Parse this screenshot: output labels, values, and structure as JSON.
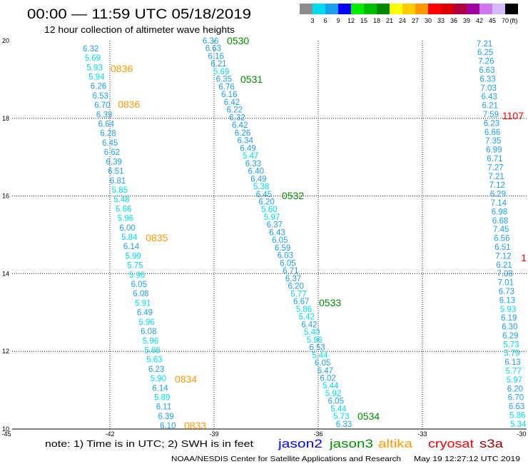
{
  "chart_data": {
    "type": "scatter",
    "title": "00:00 — 11:59 UTC 05/18/2019",
    "subtitle": "12 hour collection of altimeter wave heights",
    "xlim": [
      -45,
      -30
    ],
    "ylim": [
      10,
      20
    ],
    "x_ticks": [
      -45,
      -42,
      -39,
      -36,
      -33,
      -30
    ],
    "y_ticks": [
      20,
      18,
      16,
      14,
      12,
      10
    ],
    "grid": true,
    "colorbar": {
      "position": "top-right",
      "thresholds_ft": [
        3,
        6,
        9,
        12,
        15,
        18,
        21,
        24,
        27,
        30,
        33,
        36,
        39,
        42,
        45,
        70
      ],
      "unit": "(ft)",
      "colors": [
        "#8c8c8c",
        "#00dcee",
        "#1ca0ee",
        "#0000ff",
        "#00ee00",
        "#00bb00",
        "#008800",
        "#ffff00",
        "#ffcc00",
        "#ff9900",
        "#ff0000",
        "#dd0000",
        "#b00040",
        "#a000a0",
        "#cc77ee",
        "#d4bbff",
        "#000000"
      ]
    },
    "legend_position": "bottom",
    "legend": [
      {
        "name": "jason2",
        "color": "#0000ff"
      },
      {
        "name": "jason3",
        "color": "#008c00"
      },
      {
        "name": "altika",
        "color": "#ff9900"
      },
      {
        "name": "cryosat",
        "color": "#ff0000"
      },
      {
        "name": "s3a",
        "color": "#a00000"
      }
    ],
    "series": [
      {
        "name": "altika",
        "start": {
          "lat": 19.8,
          "lon": -42.78
        },
        "end": {
          "lat": 10.09,
          "lon": -40.56
        },
        "swh_ft": [
          6.32,
          5.69,
          5.93,
          5.94,
          6.26,
          6.53,
          6.7,
          6.39,
          6.64,
          6.28,
          6.45,
          6.62,
          6.39,
          6.51,
          6.81,
          5.85,
          5.48,
          5.66,
          5.96,
          6.0,
          5.84,
          6.14,
          5.99,
          5.75,
          5.96,
          6.05,
          6.08,
          5.91,
          6.49,
          5.96,
          6.08,
          5.96,
          5.86,
          5.63,
          6.23,
          5.9,
          6.14,
          5.89,
          6.11,
          6.39,
          6.1
        ],
        "time_labels": [
          {
            "text": "0836",
            "lat": 19.28,
            "lon": -41.98
          },
          {
            "text": "0836",
            "lat": 18.36,
            "lon": -41.77
          },
          {
            "text": "0835",
            "lat": 14.93,
            "lon": -40.97
          },
          {
            "text": "0834",
            "lat": 11.29,
            "lon": -40.13
          },
          {
            "text": "0833",
            "lat": 10.09,
            "lon": -39.86
          }
        ]
      },
      {
        "name": "jason3",
        "start": {
          "lat": 20.0,
          "lon": -39.33
        },
        "end": {
          "lat": 10.13,
          "lon": -35.49
        },
        "swh_ft": [
          6.36,
          6.63,
          6.16,
          6.21,
          5.69,
          6.35,
          6.76,
          6.16,
          6.42,
          6.22,
          6.32,
          6.42,
          6.26,
          6.34,
          6.49,
          5.47,
          6.33,
          6.4,
          6.49,
          5.38,
          6.45,
          6.2,
          5.6,
          5.97,
          6.37,
          6.43,
          6.05,
          6.59,
          6.03,
          6.05,
          6.71,
          6.37,
          6.2,
          5.77,
          6.67,
          5.86,
          5.42,
          6.42,
          5.4,
          5.96,
          6.53,
          5.44,
          6.05,
          6.47,
          6.02,
          5.44,
          5.92,
          6.05,
          5.44,
          5.73,
          6.33
        ],
        "time_labels": [
          {
            "text": "0530",
            "lat": 20.0,
            "lon": -38.63
          },
          {
            "text": "0531",
            "lat": 19.01,
            "lon": -38.24
          },
          {
            "text": "0532",
            "lat": 16.01,
            "lon": -37.05
          },
          {
            "text": "0533",
            "lat": 13.25,
            "lon": -35.98
          },
          {
            "text": "0534",
            "lat": 10.33,
            "lon": -34.87
          }
        ]
      },
      {
        "name": "cryosat",
        "start": {
          "lat": 19.93,
          "lon": -31.44
        },
        "end": {
          "lat": 10.13,
          "lon": -30.47
        },
        "swh_ft": [
          7.21,
          6.25,
          7.26,
          6.63,
          6.33,
          7.03,
          6.43,
          6.21,
          7.59,
          6.23,
          6.66,
          7.35,
          6.99,
          6.71,
          7.27,
          7.21,
          7.12,
          6.29,
          7.14,
          6.98,
          6.68,
          7.45,
          6.56,
          6.51,
          7.12,
          6.21,
          7.08,
          7.01,
          6.73,
          6.13,
          5.93,
          6.19,
          6.3,
          6.29,
          5.73,
          5.79,
          6.13,
          5.77,
          5.97,
          6.2,
          6.7,
          6.63,
          5.86,
          5.34
        ],
        "time_labels": [
          {
            "text": "1107",
            "lat": 18.07,
            "lon": -30.7
          },
          {
            "text": "1",
            "lat": 14.41,
            "lon": -30.16
          }
        ]
      }
    ]
  },
  "note": "note: 1) Time is in UTC; 2) SWH is in feet",
  "footer": {
    "credit": "NOAA/NESDIS Center for Satellite Applications and Research",
    "timestamp": "May 19 12:27:12 UTC 2019"
  }
}
